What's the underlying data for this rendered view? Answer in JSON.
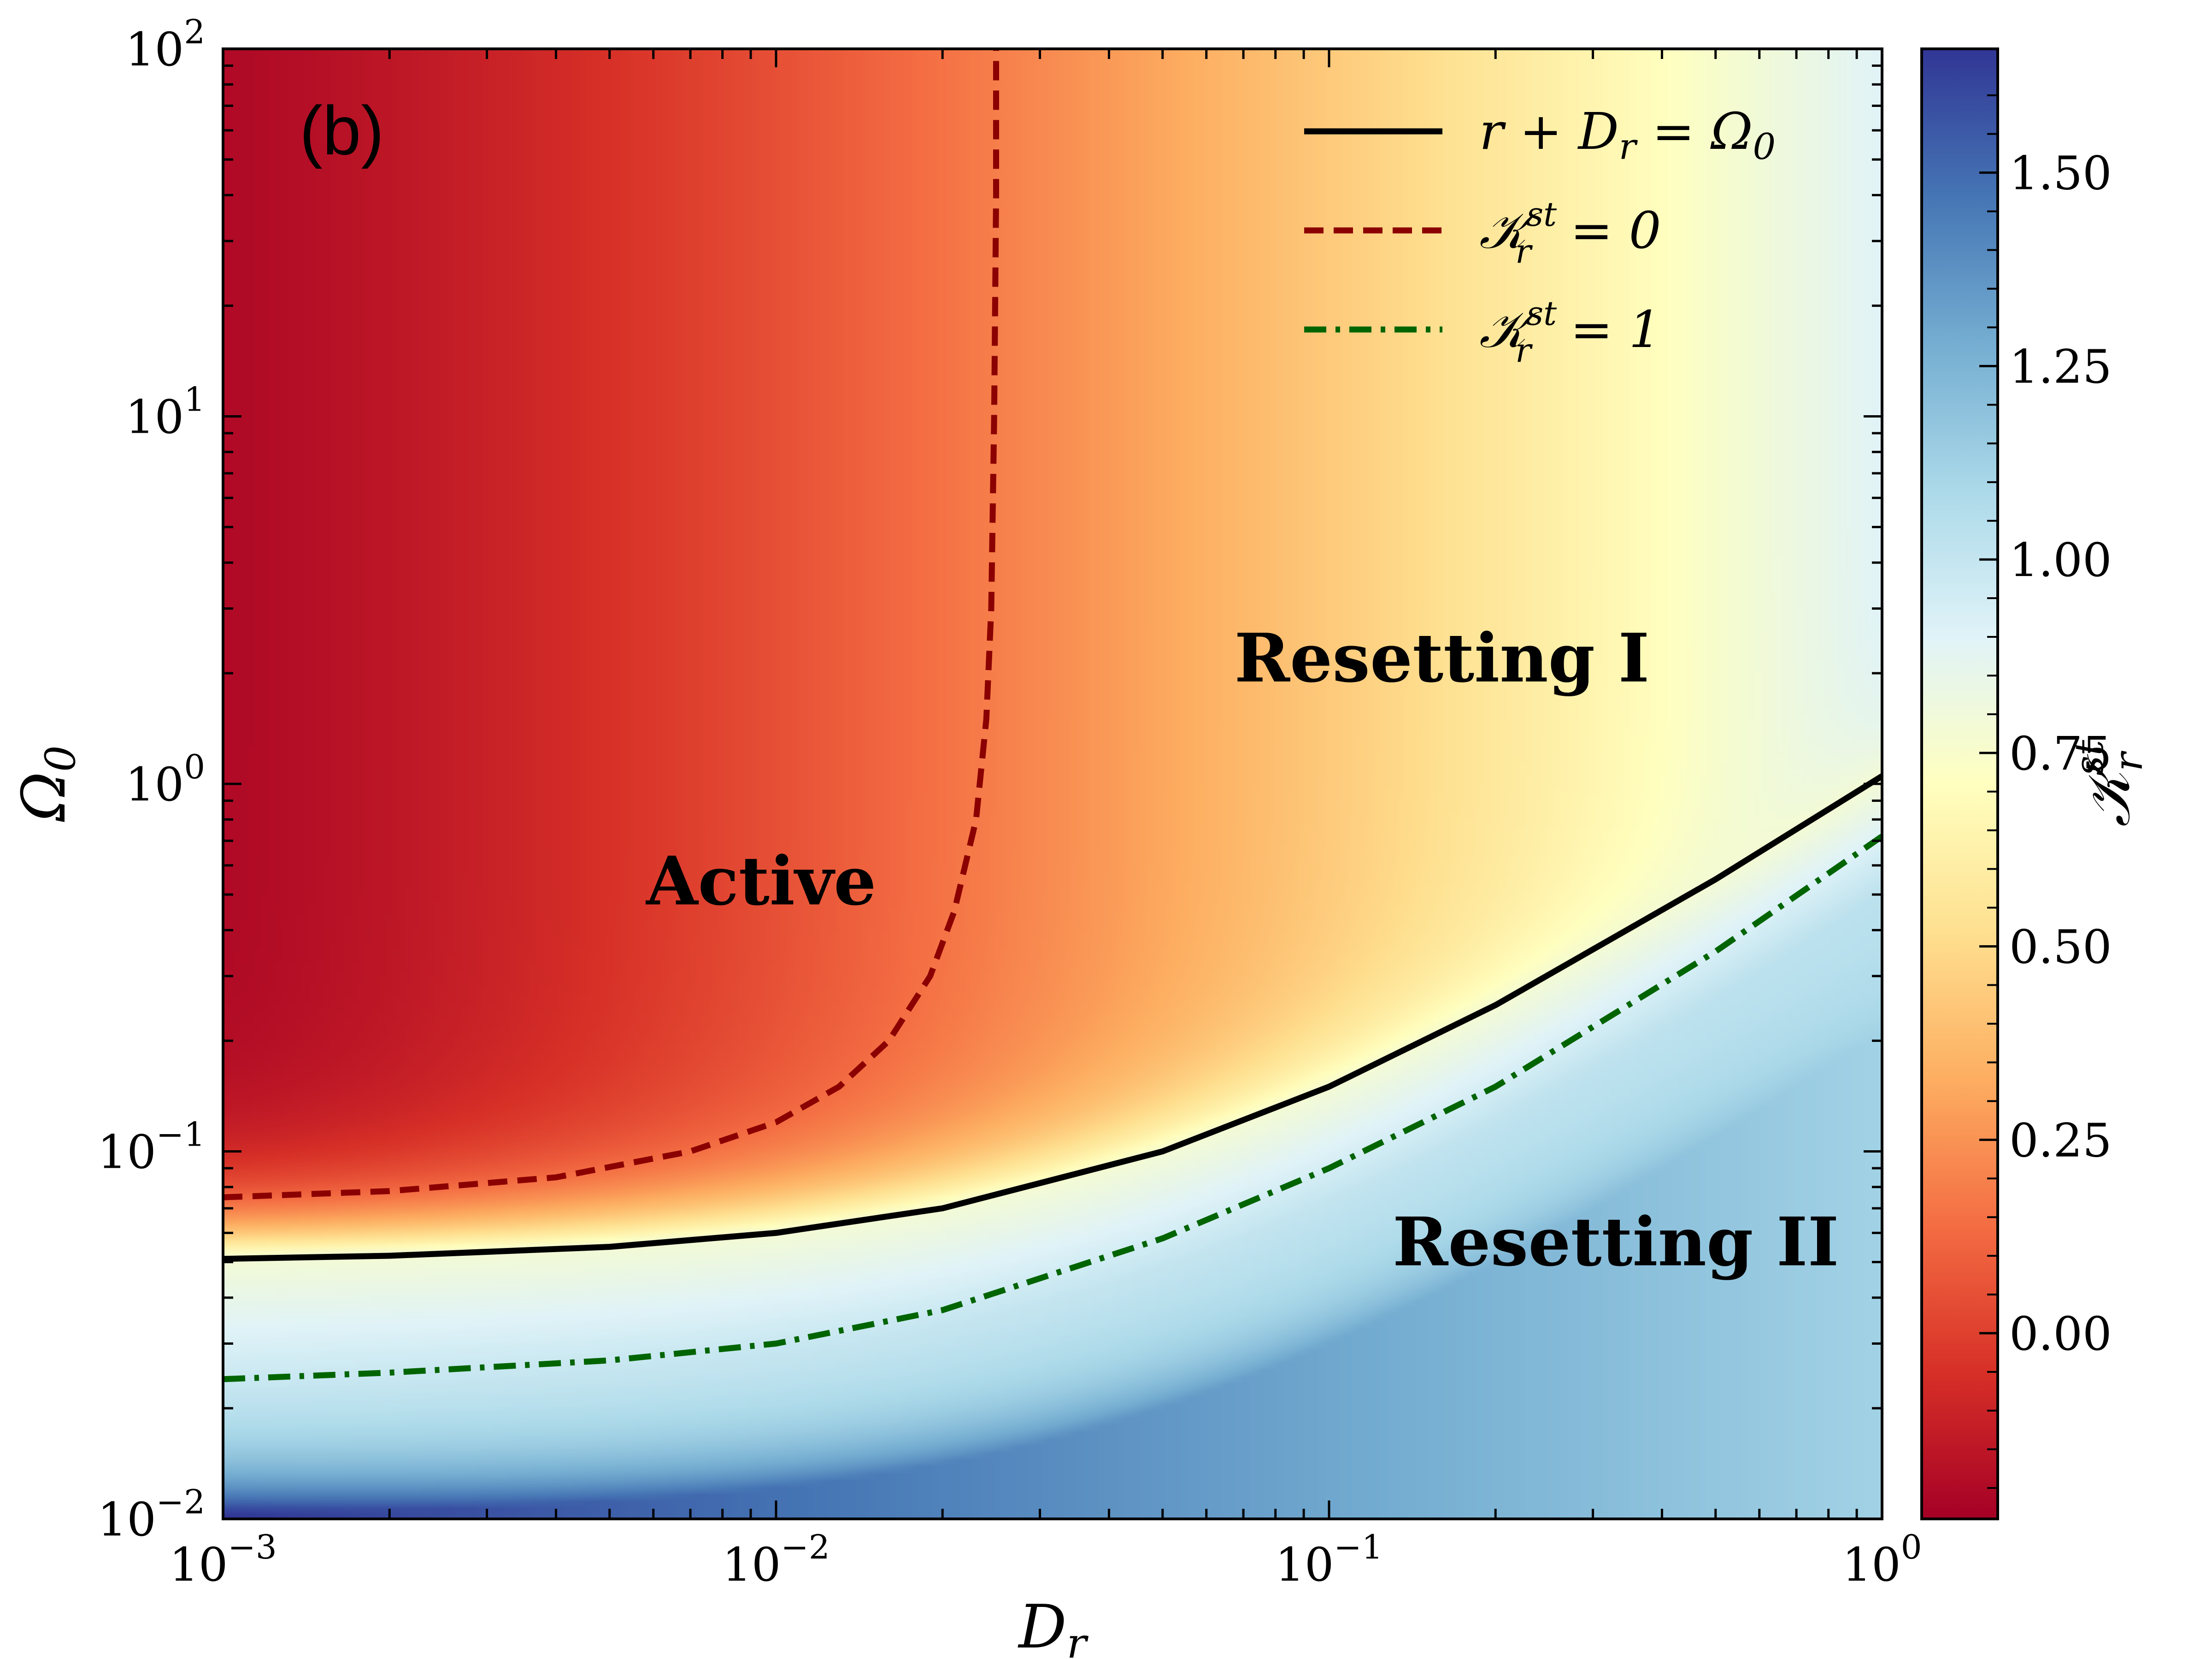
{
  "chart_data": {
    "type": "heatmap",
    "panel_label": "(b)",
    "xlabel": "D_r",
    "ylabel": "Ω_0",
    "xscale": "log",
    "yscale": "log",
    "xlim": [
      0.001,
      1
    ],
    "ylim": [
      0.01,
      100
    ],
    "x_ticks": [
      {
        "base": "10",
        "exp": "−3"
      },
      {
        "base": "10",
        "exp": "−2"
      },
      {
        "base": "10",
        "exp": "−1"
      },
      {
        "base": "10",
        "exp": "0"
      }
    ],
    "y_ticks": [
      {
        "base": "10",
        "exp": "−2"
      },
      {
        "base": "10",
        "exp": "−1"
      },
      {
        "base": "10",
        "exp": "0"
      },
      {
        "base": "10",
        "exp": "1"
      },
      {
        "base": "10",
        "exp": "2"
      }
    ],
    "colorbar": {
      "label": "K_r^st",
      "range": [
        -0.24,
        1.66
      ],
      "ticks": [
        "0.00",
        "0.25",
        "0.50",
        "0.75",
        "1.00",
        "1.25",
        "1.50"
      ],
      "tick_values": [
        0.0,
        0.25,
        0.5,
        0.75,
        1.0,
        1.25,
        1.5
      ],
      "colormap": "RdYlBu",
      "colors": [
        "#a50026",
        "#d73027",
        "#f46d43",
        "#fdae61",
        "#fee090",
        "#ffffbf",
        "#e0f3f8",
        "#abd9e9",
        "#74add1",
        "#4575b4",
        "#313695"
      ]
    },
    "regions": [
      {
        "label": "Active",
        "x": 0.0094,
        "y": 0.47
      },
      {
        "label": "Resetting I",
        "x": 0.16,
        "y": 1.9
      },
      {
        "label": "Resetting II",
        "x": 0.33,
        "y": 0.049
      }
    ],
    "series": [
      {
        "name": "r + D_r = Ω_0",
        "style": "solid",
        "color": "#000000",
        "x": [
          0.001,
          0.002,
          0.005,
          0.01,
          0.02,
          0.05,
          0.1,
          0.2,
          0.5,
          1.0
        ],
        "y": [
          0.051,
          0.052,
          0.055,
          0.06,
          0.07,
          0.1,
          0.15,
          0.25,
          0.55,
          1.05
        ]
      },
      {
        "name": "K_r^st = 0",
        "style": "dashed",
        "color": "#8b0000",
        "x": [
          0.001,
          0.002,
          0.004,
          0.007,
          0.01,
          0.013,
          0.016,
          0.019,
          0.021,
          0.023,
          0.024,
          0.0245,
          0.0248,
          0.025,
          0.025
        ],
        "y": [
          0.075,
          0.078,
          0.085,
          0.1,
          0.12,
          0.15,
          0.2,
          0.3,
          0.45,
          0.8,
          1.5,
          3.0,
          10.0,
          40.0,
          100.0
        ]
      },
      {
        "name": "K_r^st = 1",
        "style": "dashdot",
        "color": "#006400",
        "x": [
          0.001,
          0.002,
          0.005,
          0.01,
          0.02,
          0.05,
          0.1,
          0.2,
          0.5,
          1.0
        ],
        "y": [
          0.024,
          0.025,
          0.027,
          0.03,
          0.037,
          0.058,
          0.09,
          0.15,
          0.35,
          0.72
        ]
      }
    ],
    "legend": {
      "position": "top-right",
      "entries": [
        {
          "name": "r + D_r = Ω_0",
          "style": "solid",
          "color": "#000000",
          "lhs": "r + D",
          "sub": "r",
          "rhs": " = Ω",
          "rsub": "0"
        },
        {
          "name": "K_r^st = 0",
          "style": "dashed",
          "color": "#8b0000",
          "sym": "𝒦",
          "sup": "st",
          "sub": "r",
          "rhs": " = 0"
        },
        {
          "name": "K_r^st = 1",
          "style": "dashdot",
          "color": "#006400",
          "sym": "𝒦",
          "sup": "st",
          "sub": "r",
          "rhs": " = 1"
        }
      ]
    }
  }
}
